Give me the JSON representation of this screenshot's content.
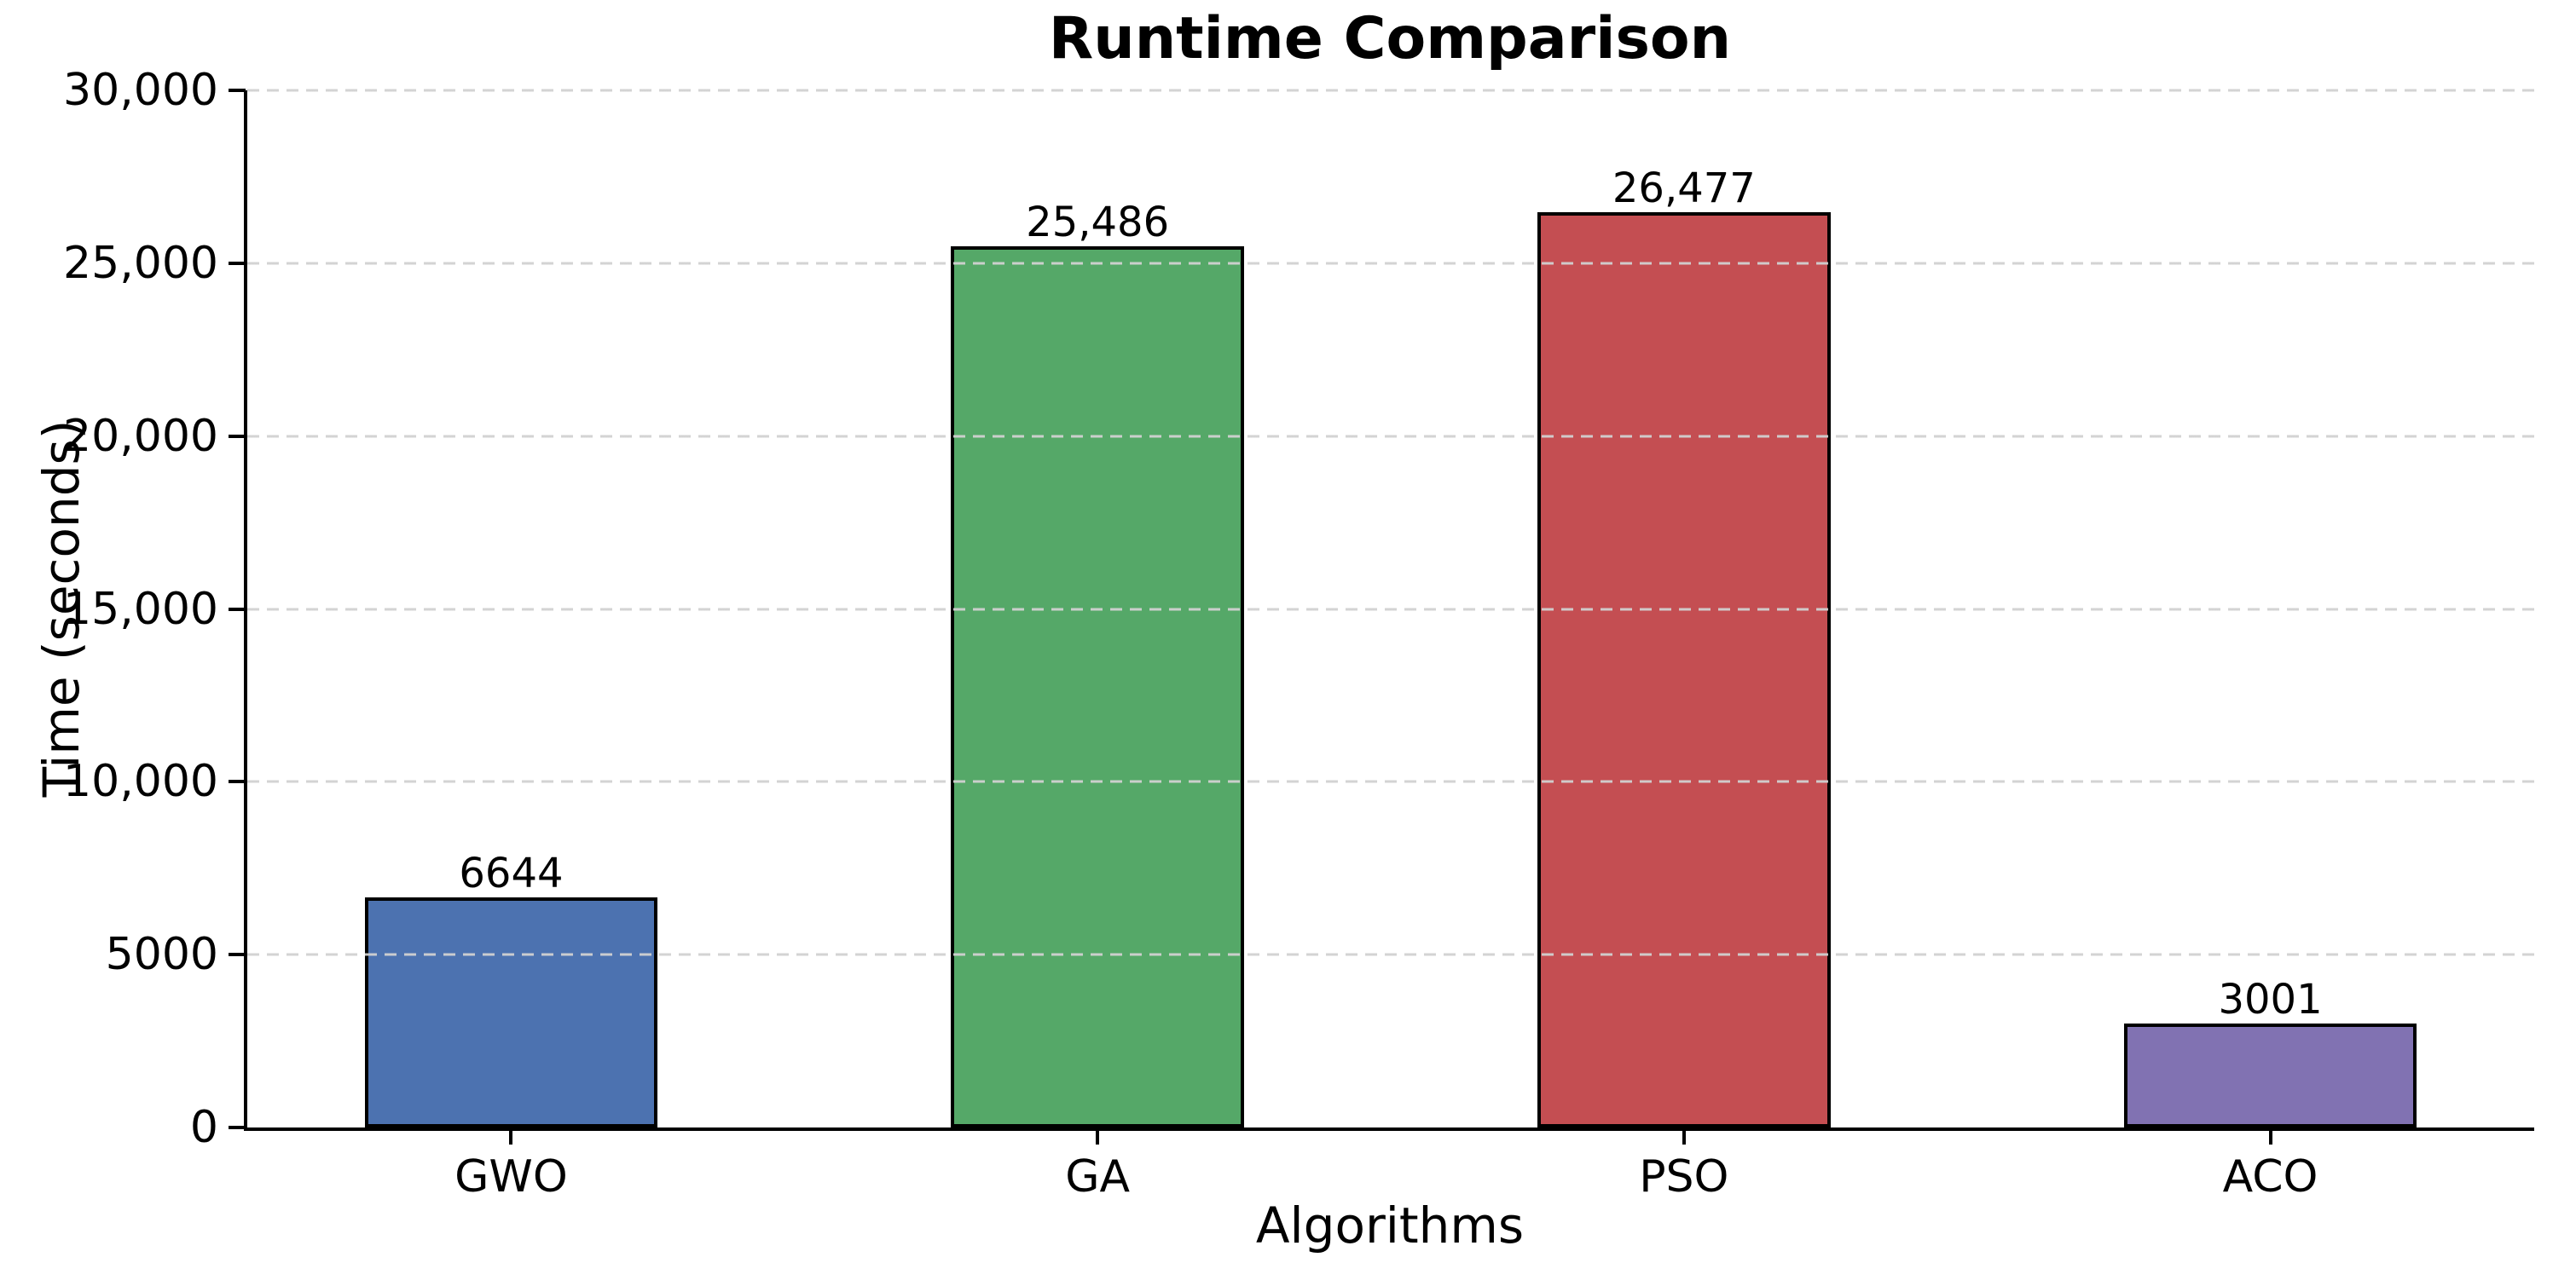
{
  "figure": {
    "background": "#ffffff",
    "text_color": "#000000"
  },
  "chart_data": {
    "type": "bar",
    "title": "Runtime Comparison",
    "xlabel": "Algorithms",
    "ylabel": "Time (seconds)",
    "categories": [
      "GWO",
      "GA",
      "PSO",
      "ACO"
    ],
    "values": [
      6644,
      25486,
      26477,
      3001
    ],
    "value_labels": [
      "6644",
      "25,486",
      "26,477",
      "3001"
    ],
    "bar_colors": [
      "#4C72B0",
      "#55A868",
      "#C44E52",
      "#8172B2"
    ],
    "bar_edge_color": "#000000",
    "ylim": [
      0,
      30000
    ],
    "yticks": [
      {
        "value": 0,
        "label": "0"
      },
      {
        "value": 5000,
        "label": "5000"
      },
      {
        "value": 10000,
        "label": "10,000"
      },
      {
        "value": 15000,
        "label": "15,000"
      },
      {
        "value": 20000,
        "label": "20,000"
      },
      {
        "value": 25000,
        "label": "25,000"
      },
      {
        "value": 30000,
        "label": "30,000"
      }
    ],
    "grid": {
      "axis": "y",
      "style": "dashed",
      "color": "#d1d1d1",
      "above_bars": true
    },
    "legend": "none",
    "xlim": [
      -0.45,
      3.45
    ],
    "bar_width": 0.5
  }
}
